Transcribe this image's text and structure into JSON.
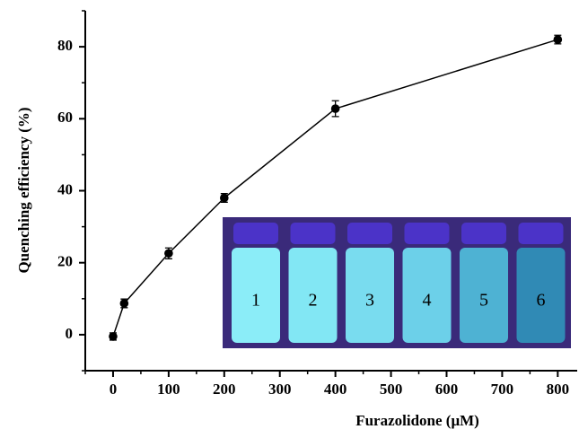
{
  "chart_data": {
    "type": "line",
    "x": [
      0,
      20,
      100,
      200,
      400,
      800
    ],
    "values": [
      -0.5,
      8.7,
      22.6,
      38,
      62.8,
      82
    ],
    "errors": [
      1,
      1.2,
      1.5,
      1.2,
      2.2,
      1.2
    ],
    "color": "#000000",
    "xlabel": "Furazolidone (μM)",
    "ylabel": "Quenching efficiency (%)",
    "xlim": [
      -50,
      835
    ],
    "ylim": [
      -10,
      90
    ],
    "xticks": [
      0,
      100,
      200,
      300,
      400,
      500,
      600,
      700,
      800
    ],
    "xminorticks": [
      -50,
      50,
      150,
      250,
      350,
      450,
      550,
      650,
      750
    ],
    "yticks": [
      0,
      20,
      40,
      60,
      80
    ],
    "yminorticks": [
      -10,
      10,
      30,
      50,
      70,
      90
    ],
    "inset_labels": [
      "1",
      "2",
      "3",
      "4",
      "5",
      "6"
    ]
  }
}
